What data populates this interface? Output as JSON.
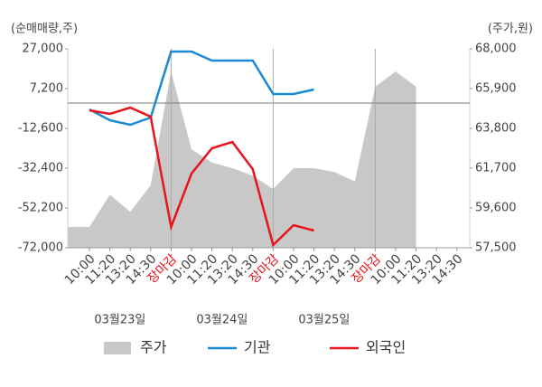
{
  "chart_data": {
    "type": "line",
    "y_axis_label": "(순매매량,주)",
    "y2_axis_label": "(주가,원)",
    "categories": [
      "10:00",
      "11:20",
      "13:20",
      "14:30",
      "장마감",
      "10:00",
      "11:20",
      "13:20",
      "14:30",
      "장마감",
      "10:00",
      "11:20",
      "13:20",
      "14:30",
      "장마감",
      "10:00",
      "11:20",
      "13:20",
      "14:30"
    ],
    "date_labels": [
      "03월23일",
      "03월24일",
      "03월25일"
    ],
    "ylim": [
      -72000,
      27000
    ],
    "yticks": [
      {
        "value": 27000,
        "label": "27,000"
      },
      {
        "value": 7200,
        "label": "7,200"
      },
      {
        "value": -12600,
        "label": "-12,600"
      },
      {
        "value": -32400,
        "label": "-32,400"
      },
      {
        "value": -52200,
        "label": "-52,200"
      },
      {
        "value": -72000,
        "label": "-72,000"
      }
    ],
    "y2lim": [
      57500,
      68000
    ],
    "y2ticks": [
      {
        "value": 68000,
        "label": "68,000"
      },
      {
        "value": 65900,
        "label": "65,900"
      },
      {
        "value": 63800,
        "label": "63,800"
      },
      {
        "value": 61700,
        "label": "61,700"
      },
      {
        "value": 59600,
        "label": "59,600"
      },
      {
        "value": 57500,
        "label": "57,500"
      }
    ],
    "series": [
      {
        "name": "주가",
        "type": "area",
        "axis": "y2",
        "color": "#c8c8c8",
        "values": [
          58600,
          60300,
          59400,
          60800,
          66800,
          62700,
          62000,
          61700,
          61300,
          60600,
          61700,
          61700,
          61500,
          61000,
          66000,
          66800,
          66000,
          null,
          null
        ]
      },
      {
        "name": "기관",
        "type": "line",
        "color": "#1a8ad4",
        "values": [
          -3150,
          -8550,
          -10800,
          -7200,
          25650,
          25650,
          21150,
          21150,
          21150,
          4500,
          4500,
          6750,
          null,
          null,
          null,
          null,
          null,
          null,
          null
        ]
      },
      {
        "name": "외국인",
        "type": "line",
        "color": "#e8141b",
        "values": [
          -3600,
          -5400,
          -2250,
          -6750,
          -61650,
          -35100,
          -22500,
          -19350,
          -32850,
          -70650,
          -60750,
          -63450,
          null,
          null,
          null,
          null,
          null,
          null,
          null
        ]
      }
    ]
  }
}
